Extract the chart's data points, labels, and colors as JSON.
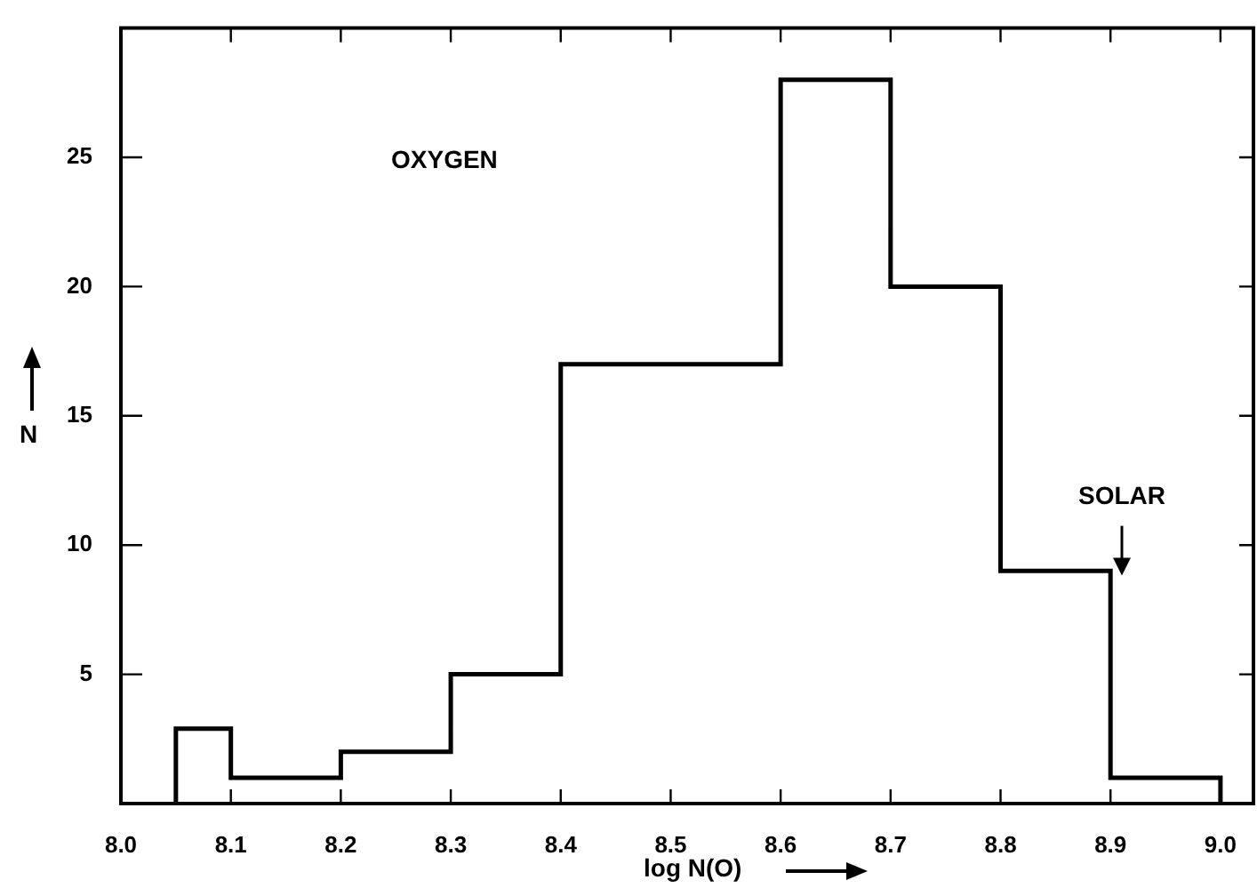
{
  "chart_data": {
    "type": "histogram",
    "xlabel": "log N(O)",
    "ylabel": "N",
    "bins": [
      8.05,
      8.1,
      8.2,
      8.3,
      8.4,
      8.5,
      8.6,
      8.7,
      8.8,
      8.9,
      9.0
    ],
    "values": [
      2.9,
      1,
      2,
      5,
      17,
      17,
      28,
      20,
      9,
      1
    ],
    "color": "#000000",
    "xlim": [
      8.0,
      9.03
    ],
    "ylim": [
      0,
      30
    ],
    "xticks": [
      {
        "value": 8.0,
        "label": "8.0"
      },
      {
        "value": 8.1,
        "label": "8.1"
      },
      {
        "value": 8.2,
        "label": "8.2"
      },
      {
        "value": 8.3,
        "label": "8.3"
      },
      {
        "value": 8.4,
        "label": "8.4"
      },
      {
        "value": 8.5,
        "label": "8.5"
      },
      {
        "value": 8.6,
        "label": "8.6"
      },
      {
        "value": 8.7,
        "label": "8.7"
      },
      {
        "value": 8.8,
        "label": "8.8"
      },
      {
        "value": 8.9,
        "label": "8.9"
      },
      {
        "value": 9.0,
        "label": "9.0"
      }
    ],
    "yticks": [
      5,
      10,
      15,
      20,
      25
    ],
    "annotations": [
      "OXYGEN",
      "SOLAR"
    ]
  }
}
